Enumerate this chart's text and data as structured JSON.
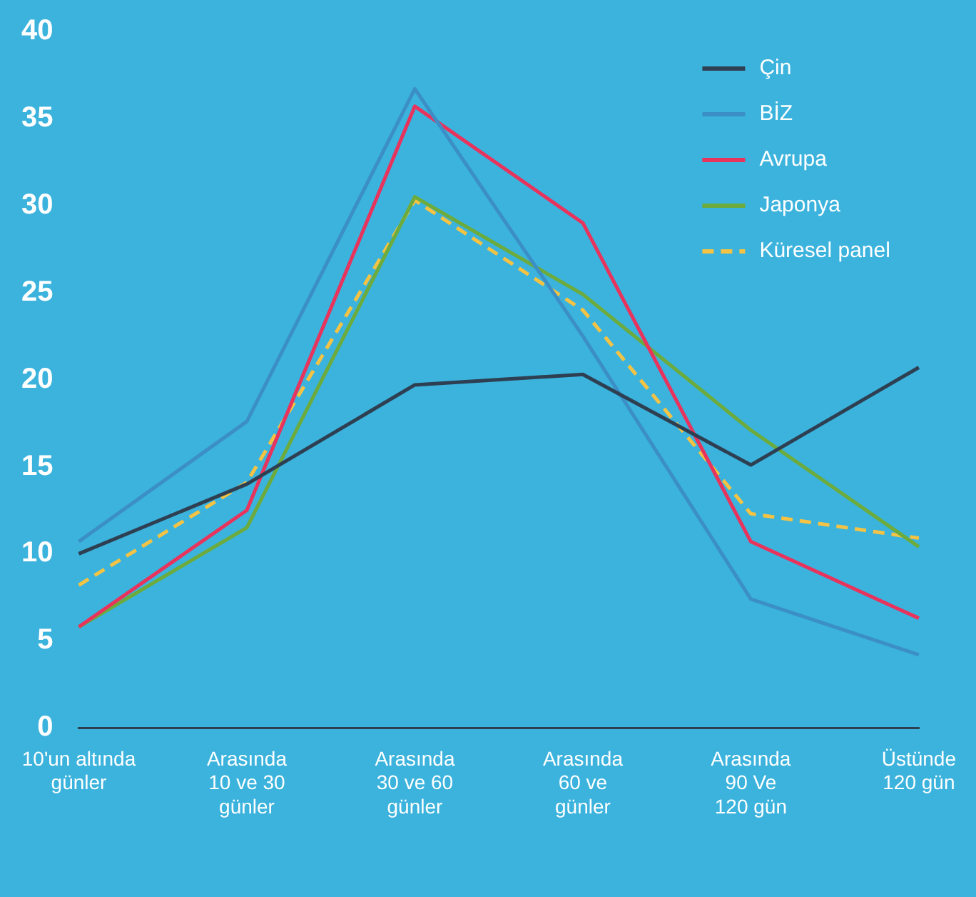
{
  "chart_data": {
    "type": "line",
    "categories": [
      "10'un altında\ngünler",
      "Arasında\n10 ve 30\ngünler",
      "Arasında\n30 ve 60\ngünler",
      "Arasında\n60 ve\ngünler",
      "Arasında\n90 Ve\n120 gün",
      "Üstünde\n120 gün"
    ],
    "series": [
      {
        "name": "Çin",
        "color": "#2e3f52",
        "values": [
          10,
          14,
          19.7,
          20.3,
          15.1,
          20.7
        ]
      },
      {
        "name": "BİZ",
        "color": "#3b8fc6",
        "values": [
          10.7,
          17.6,
          36.7,
          22.5,
          7.4,
          4.2
        ]
      },
      {
        "name": "Avrupa",
        "color": "#e8335c",
        "values": [
          5.8,
          12.5,
          35.7,
          29,
          10.7,
          6.3
        ]
      },
      {
        "name": "Japonya",
        "color": "#6cab3c",
        "values": [
          5.8,
          11.5,
          30.5,
          24.9,
          17.1,
          10.4
        ]
      },
      {
        "name": "Küresel panel",
        "color": "#f5c343",
        "values": [
          8.2,
          14.1,
          30.3,
          24,
          12.3,
          10.9
        ],
        "line_style": "dashed"
      }
    ],
    "ylim": [
      0,
      40
    ],
    "yticks": [
      0,
      5,
      10,
      15,
      20,
      25,
      30,
      35,
      40
    ],
    "grid": false,
    "legend": "top right",
    "marker": "none"
  }
}
